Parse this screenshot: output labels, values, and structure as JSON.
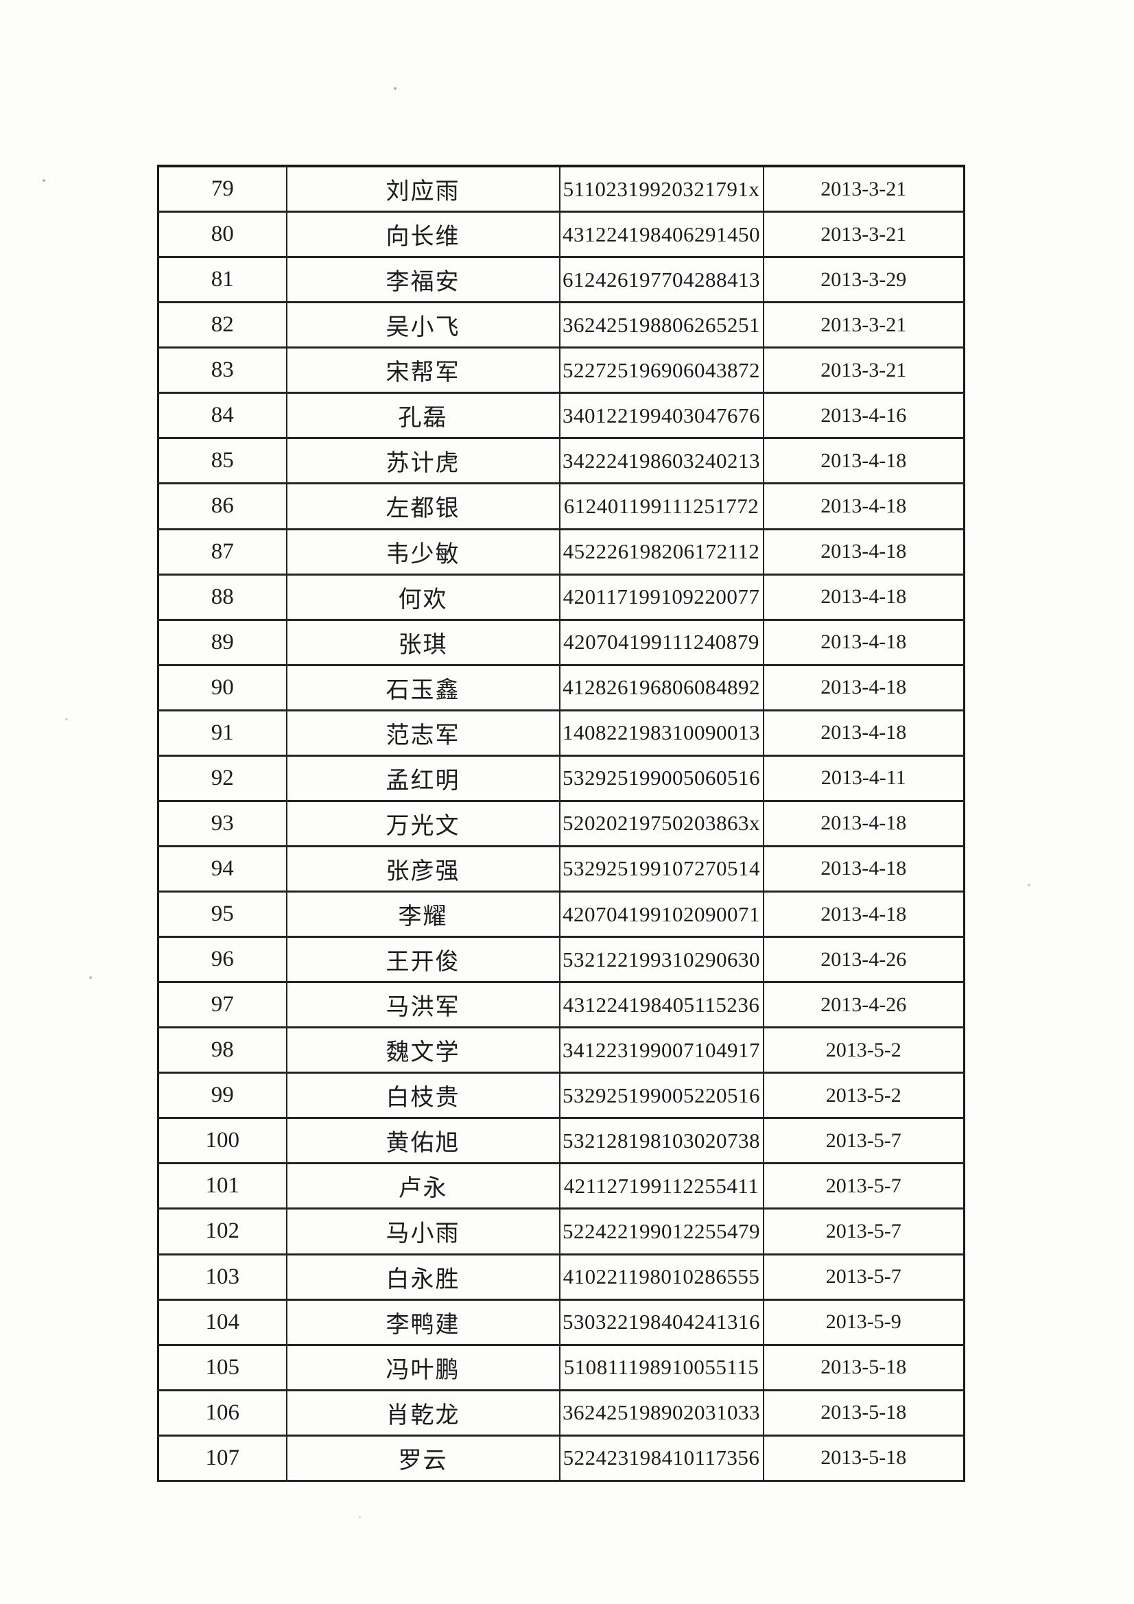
{
  "table": {
    "column_keys": [
      "no",
      "name",
      "id_number",
      "date"
    ],
    "rows": [
      [
        "79",
        "刘应雨",
        "51102319920321791x",
        "2013-3-21"
      ],
      [
        "80",
        "向长维",
        "431224198406291450",
        "2013-3-21"
      ],
      [
        "81",
        "李福安",
        "612426197704288413",
        "2013-3-29"
      ],
      [
        "82",
        "吴小飞",
        "362425198806265251",
        "2013-3-21"
      ],
      [
        "83",
        "宋帮军",
        "522725196906043872",
        "2013-3-21"
      ],
      [
        "84",
        "孔磊",
        "340122199403047676",
        "2013-4-16"
      ],
      [
        "85",
        "苏计虎",
        "342224198603240213",
        "2013-4-18"
      ],
      [
        "86",
        "左都银",
        "612401199111251772",
        "2013-4-18"
      ],
      [
        "87",
        "韦少敏",
        "452226198206172112",
        "2013-4-18"
      ],
      [
        "88",
        "何欢",
        "420117199109220077",
        "2013-4-18"
      ],
      [
        "89",
        "张琪",
        "420704199111240879",
        "2013-4-18"
      ],
      [
        "90",
        "石玉鑫",
        "412826196806084892",
        "2013-4-18"
      ],
      [
        "91",
        "范志军",
        "140822198310090013",
        "2013-4-18"
      ],
      [
        "92",
        "孟红明",
        "532925199005060516",
        "2013-4-11"
      ],
      [
        "93",
        "万光文",
        "52020219750203863x",
        "2013-4-18"
      ],
      [
        "94",
        "张彦强",
        "532925199107270514",
        "2013-4-18"
      ],
      [
        "95",
        "李耀",
        "420704199102090071",
        "2013-4-18"
      ],
      [
        "96",
        "王开俊",
        "532122199310290630",
        "2013-4-26"
      ],
      [
        "97",
        "马洪军",
        "431224198405115236",
        "2013-4-26"
      ],
      [
        "98",
        "魏文学",
        "341223199007104917",
        "2013-5-2"
      ],
      [
        "99",
        "白枝贵",
        "532925199005220516",
        "2013-5-2"
      ],
      [
        "100",
        "黄佑旭",
        "532128198103020738",
        "2013-5-7"
      ],
      [
        "101",
        "卢永",
        "421127199112255411",
        "2013-5-7"
      ],
      [
        "102",
        "马小雨",
        "522422199012255479",
        "2013-5-7"
      ],
      [
        "103",
        "白永胜",
        "410221198010286555",
        "2013-5-7"
      ],
      [
        "104",
        "李鸭建",
        "530322198404241316",
        "2013-5-9"
      ],
      [
        "105",
        "冯叶鹏",
        "510811198910055115",
        "2013-5-18"
      ],
      [
        "106",
        "肖乾龙",
        "362425198902031033",
        "2013-5-18"
      ],
      [
        "107",
        "罗云",
        "522423198410117356",
        "2013-5-18"
      ]
    ]
  }
}
